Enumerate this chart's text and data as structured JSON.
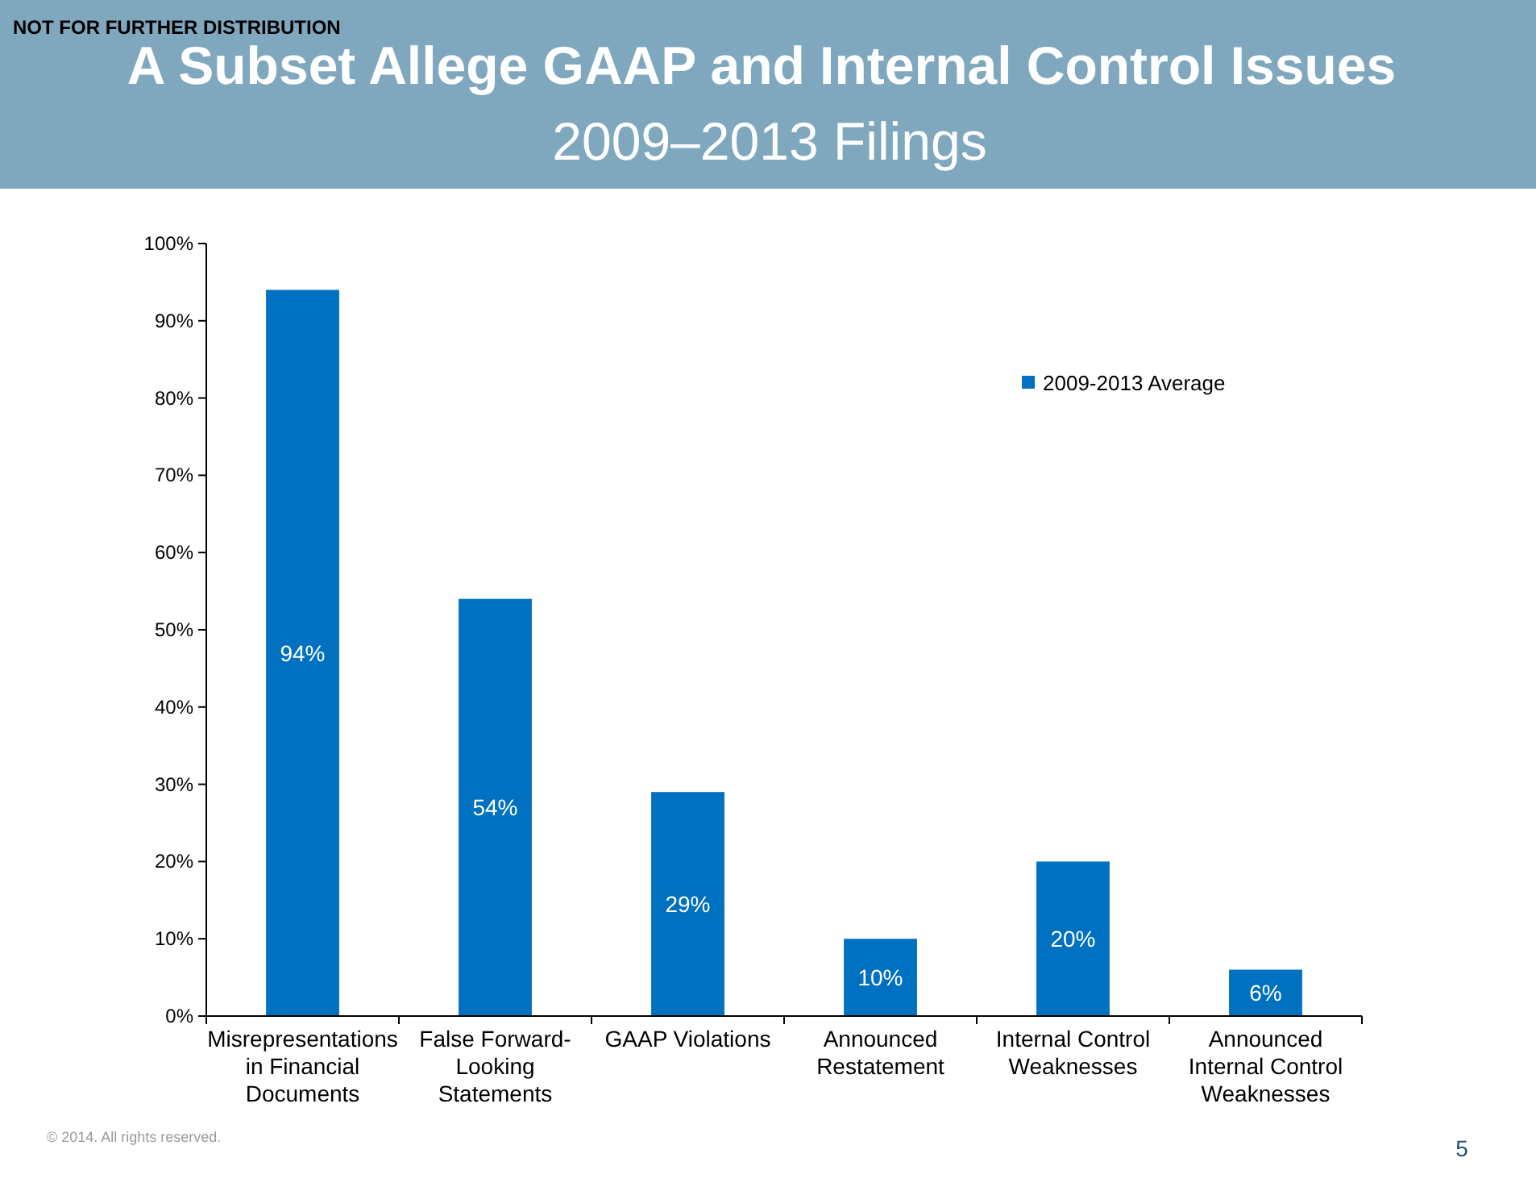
{
  "chart_data": {
    "type": "bar",
    "title": "A Subset Allege GAAP and Internal Control Issues",
    "subtitle": "2009–2013 Filings",
    "categories": [
      "Misrepresentations in Financial Documents",
      "False Forward-Looking Statements",
      "GAAP Violations",
      "Announced Restatement",
      "Internal Control Weaknesses",
      "Announced Internal Control Weaknesses"
    ],
    "series": [
      {
        "name": "2009-2013 Average",
        "color": "#0070c0",
        "values": [
          94,
          54,
          29,
          10,
          20,
          6
        ]
      }
    ],
    "value_labels": [
      "94%",
      "54%",
      "29%",
      "10%",
      "20%",
      "6%"
    ],
    "ylim": [
      0,
      100
    ],
    "yticks": [
      {
        "value": 0,
        "label": "0%"
      },
      {
        "value": 10,
        "label": "10%"
      },
      {
        "value": 20,
        "label": "20%"
      },
      {
        "value": 30,
        "label": "30%"
      },
      {
        "value": 40,
        "label": "40%"
      },
      {
        "value": 50,
        "label": "50%"
      },
      {
        "value": 60,
        "label": "60%"
      },
      {
        "value": 70,
        "label": "70%"
      },
      {
        "value": 80,
        "label": "80%"
      },
      {
        "value": 90,
        "label": "90%"
      },
      {
        "value": 100,
        "label": "100%"
      }
    ],
    "grid": false,
    "legend": "top right",
    "annotations": [
      "NOT FOR FURTHER DISTRIBUTION",
      "© 2014. All rights reserved.",
      "5"
    ]
  }
}
